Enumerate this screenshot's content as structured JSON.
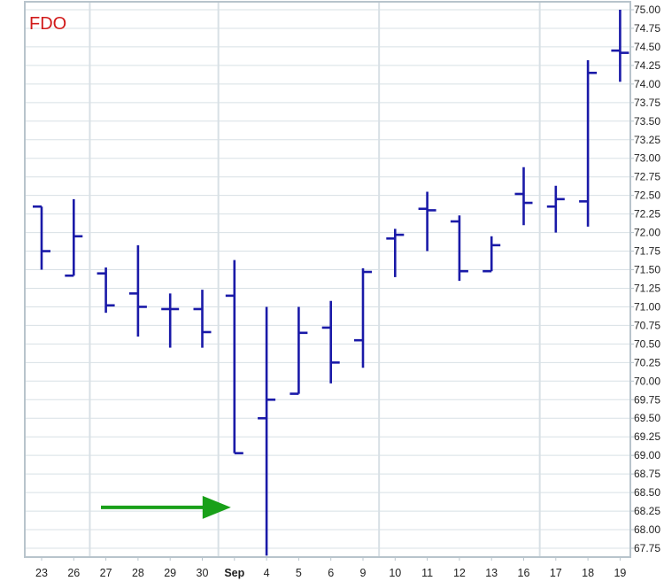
{
  "chart_data": {
    "type": "ohlc",
    "ticker": "FDO",
    "colors": {
      "bars": "#1a1aa8",
      "ticker": "#d11a1a",
      "arrow": "#19a019",
      "grid": "#d8e0e5",
      "frame": "#b8c4cc"
    },
    "ylim": [
      67.6,
      75.1
    ],
    "y_ticks": [
      "75.00",
      "74.75",
      "74.50",
      "74.25",
      "74.00",
      "73.75",
      "73.50",
      "73.25",
      "73.00",
      "72.75",
      "72.50",
      "72.25",
      "72.00",
      "71.75",
      "71.50",
      "71.25",
      "71.00",
      "70.75",
      "70.50",
      "70.25",
      "70.00",
      "69.75",
      "69.50",
      "69.25",
      "69.00",
      "68.75",
      "68.50",
      "68.25",
      "68.00",
      "67.75"
    ],
    "categories": [
      "23",
      "26",
      "27",
      "28",
      "29",
      "30",
      "Sep",
      "4",
      "5",
      "6",
      "9",
      "10",
      "11",
      "12",
      "13",
      "16",
      "17",
      "18",
      "19"
    ],
    "bold_categories": [
      "Sep"
    ],
    "vertical_gridlines_after": [
      "26",
      "30",
      "9",
      "16"
    ],
    "bars": [
      {
        "open": 72.35,
        "high": 72.35,
        "low": 71.5,
        "close": 71.75
      },
      {
        "open": 71.42,
        "high": 72.45,
        "low": 71.42,
        "close": 71.95
      },
      {
        "open": 71.45,
        "high": 71.53,
        "low": 70.92,
        "close": 71.02
      },
      {
        "open": 71.18,
        "high": 71.83,
        "low": 70.6,
        "close": 71.0
      },
      {
        "open": 70.97,
        "high": 71.18,
        "low": 70.45,
        "close": 70.97
      },
      {
        "open": 70.97,
        "high": 71.23,
        "low": 70.45,
        "close": 70.66
      },
      {
        "open": 71.15,
        "high": 71.63,
        "low": 69.03,
        "close": 69.03
      },
      {
        "open": 69.5,
        "high": 71.0,
        "low": 67.65,
        "close": 69.75
      },
      {
        "open": 69.83,
        "high": 71.0,
        "low": 69.83,
        "close": 70.65
      },
      {
        "open": 70.72,
        "high": 71.08,
        "low": 69.97,
        "close": 70.25
      },
      {
        "open": 70.55,
        "high": 71.52,
        "low": 70.18,
        "close": 71.47
      },
      {
        "open": 71.92,
        "high": 72.05,
        "low": 71.4,
        "close": 71.97
      },
      {
        "open": 72.32,
        "high": 72.55,
        "low": 71.75,
        "close": 72.3
      },
      {
        "open": 72.15,
        "high": 72.23,
        "low": 71.35,
        "close": 71.48
      },
      {
        "open": 71.48,
        "high": 71.95,
        "low": 71.48,
        "close": 71.83
      },
      {
        "open": 72.52,
        "high": 72.88,
        "low": 72.1,
        "close": 72.4
      },
      {
        "open": 72.35,
        "high": 72.63,
        "low": 72.0,
        "close": 72.45
      },
      {
        "open": 72.42,
        "high": 74.32,
        "low": 72.08,
        "close": 74.15
      },
      {
        "open": 74.45,
        "high": 75.0,
        "low": 74.03,
        "close": 74.42
      }
    ],
    "annotations": [
      {
        "type": "arrow",
        "pointing_to": "Sep",
        "y": 68.3
      }
    ]
  }
}
